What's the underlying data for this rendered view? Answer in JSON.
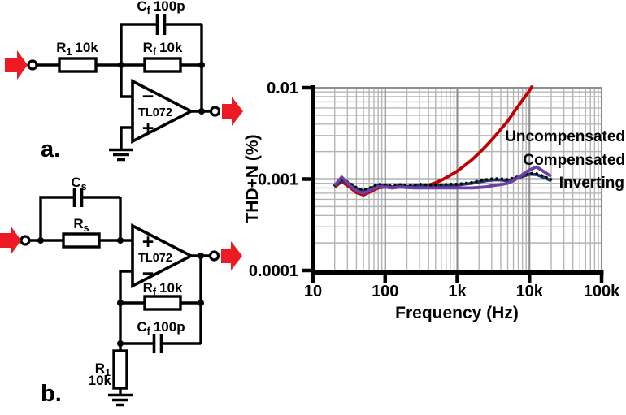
{
  "figure": {
    "circuit_a": {
      "label": "a.",
      "opamp_label": "TL072",
      "minus_sign": "−",
      "plus_sign": "+",
      "r1_name": "R",
      "r1_sub": "1",
      "r1_value": "10k",
      "rf_name": "R",
      "rf_sub": "f",
      "rf_value": "10k",
      "cf_name": "C",
      "cf_sub": "f",
      "cf_value": "100p"
    },
    "circuit_b": {
      "label": "b.",
      "opamp_label": "TL072",
      "minus_sign": "−",
      "plus_sign": "+",
      "cs_name": "C",
      "cs_sub": "s",
      "rs_name": "R",
      "rs_sub": "s",
      "rf_name": "R",
      "rf_sub": "f",
      "rf_value": "10k",
      "cf_name": "C",
      "cf_sub": "f",
      "cf_value": "100p",
      "r1_name": "R",
      "r1_sub": "1",
      "r1_value": "10k"
    }
  },
  "colors": {
    "arrow_red": "#ec1b23",
    "uncompensated": "#c00000",
    "compensated": "#6e3fa5",
    "inverting": "#1f3864",
    "dotted_overlay": "#000000",
    "grid_minor": "#b5b5b5",
    "grid_major": "#8e8e8e",
    "axis": "#000000"
  },
  "chart_data": {
    "type": "line",
    "title": "",
    "xlabel": "Frequency (Hz)",
    "ylabel": "THD+N (%)",
    "x_scale": "log",
    "y_scale": "log",
    "xlim": [
      10,
      100000
    ],
    "ylim": [
      0.0001,
      0.01
    ],
    "grid": "log major+minor gridlines, light gray, on",
    "legend_position": "inline-right",
    "x_ticks": [
      {
        "value": 10,
        "label": "10"
      },
      {
        "value": 100,
        "label": "100"
      },
      {
        "value": 1000,
        "label": "1k"
      },
      {
        "value": 10000,
        "label": "10k"
      },
      {
        "value": 100000,
        "label": "100k"
      }
    ],
    "y_ticks": [
      {
        "value": 0.01,
        "label": "0.01"
      },
      {
        "value": 0.001,
        "label": "0.001"
      },
      {
        "value": 0.0001,
        "label": "0.0001"
      }
    ],
    "series": [
      {
        "name": "Uncompensated",
        "color": "#c00000",
        "style": "solid",
        "z": 1,
        "show_label": true,
        "x": [
          20,
          25,
          32,
          40,
          50,
          63,
          80,
          100,
          125,
          160,
          200,
          250,
          315,
          400,
          500,
          630,
          800,
          1000,
          1250,
          1600,
          2000,
          2500,
          3150,
          4000,
          5000,
          6300,
          8000,
          10000,
          11000
        ],
        "y": [
          0.00082,
          0.00094,
          0.00082,
          0.00071,
          0.00067,
          0.00073,
          0.0008,
          0.00082,
          0.0008,
          0.00082,
          0.00081,
          0.00082,
          0.00083,
          0.00086,
          0.00091,
          0.00099,
          0.0011,
          0.00122,
          0.0014,
          0.00163,
          0.00192,
          0.0023,
          0.0028,
          0.0035,
          0.0043,
          0.0056,
          0.0073,
          0.0093,
          0.0105
        ]
      },
      {
        "name": "Compensated",
        "color": "#6e3fa5",
        "style": "solid",
        "z": 4,
        "show_label": true,
        "x": [
          20,
          25,
          32,
          40,
          50,
          63,
          80,
          100,
          125,
          160,
          200,
          250,
          315,
          400,
          500,
          630,
          800,
          1000,
          1250,
          1600,
          2000,
          2500,
          3150,
          4000,
          5000,
          6300,
          8000,
          10000,
          12500,
          16000,
          20000
        ],
        "y": [
          0.00085,
          0.00105,
          0.00086,
          0.00074,
          0.0007,
          0.00076,
          0.00082,
          0.00082,
          0.0008,
          0.00082,
          0.00081,
          0.0008,
          0.0008,
          0.0008,
          0.0008,
          0.0008,
          0.0008,
          0.0008,
          0.0008,
          0.0008,
          0.00081,
          0.00082,
          0.00085,
          0.00087,
          0.0009,
          0.00098,
          0.00112,
          0.00126,
          0.00136,
          0.0012,
          0.00107
        ]
      },
      {
        "name": "Inverting",
        "color": "#1f3864",
        "style": "solid",
        "z": 2,
        "show_label": true,
        "x": [
          20,
          25,
          32,
          40,
          50,
          63,
          80,
          100,
          125,
          160,
          200,
          250,
          315,
          400,
          500,
          630,
          800,
          1000,
          1250,
          1600,
          2000,
          2500,
          3150,
          4000,
          5000,
          6300,
          8000,
          10000,
          12500,
          16000,
          20000
        ],
        "y": [
          0.00084,
          0.00097,
          0.00089,
          0.00079,
          0.00074,
          0.00079,
          0.00086,
          0.00085,
          0.00082,
          0.00085,
          0.00083,
          0.00084,
          0.00086,
          0.00084,
          0.00084,
          0.00085,
          0.00086,
          0.00086,
          0.00088,
          0.0009,
          0.00093,
          0.00096,
          0.00098,
          0.00098,
          0.00096,
          0.00101,
          0.00107,
          0.00113,
          0.00112,
          0.00104,
          0.00096
        ]
      },
      {
        "name": "Inverting (dotted overlay)",
        "color": "#000000",
        "style": "dotted",
        "z": 3,
        "show_label": false,
        "x": [
          20,
          25,
          32,
          40,
          50,
          63,
          80,
          100,
          125,
          160,
          200,
          250,
          315,
          400,
          500,
          630,
          800,
          1000,
          1250,
          1600,
          2000,
          2500,
          3150,
          4000,
          5000,
          6300,
          8000,
          10000,
          12500,
          16000,
          20000
        ],
        "y": [
          0.00086,
          0.001,
          0.00091,
          0.00081,
          0.00076,
          0.00081,
          0.00088,
          0.00087,
          0.00084,
          0.00087,
          0.00085,
          0.00086,
          0.00088,
          0.00086,
          0.00086,
          0.00087,
          0.00088,
          0.00088,
          0.0009,
          0.00092,
          0.00096,
          0.00099,
          0.00101,
          0.00101,
          0.00099,
          0.00104,
          0.0011,
          0.00116,
          0.00115,
          0.00107,
          0.00099
        ]
      }
    ]
  }
}
